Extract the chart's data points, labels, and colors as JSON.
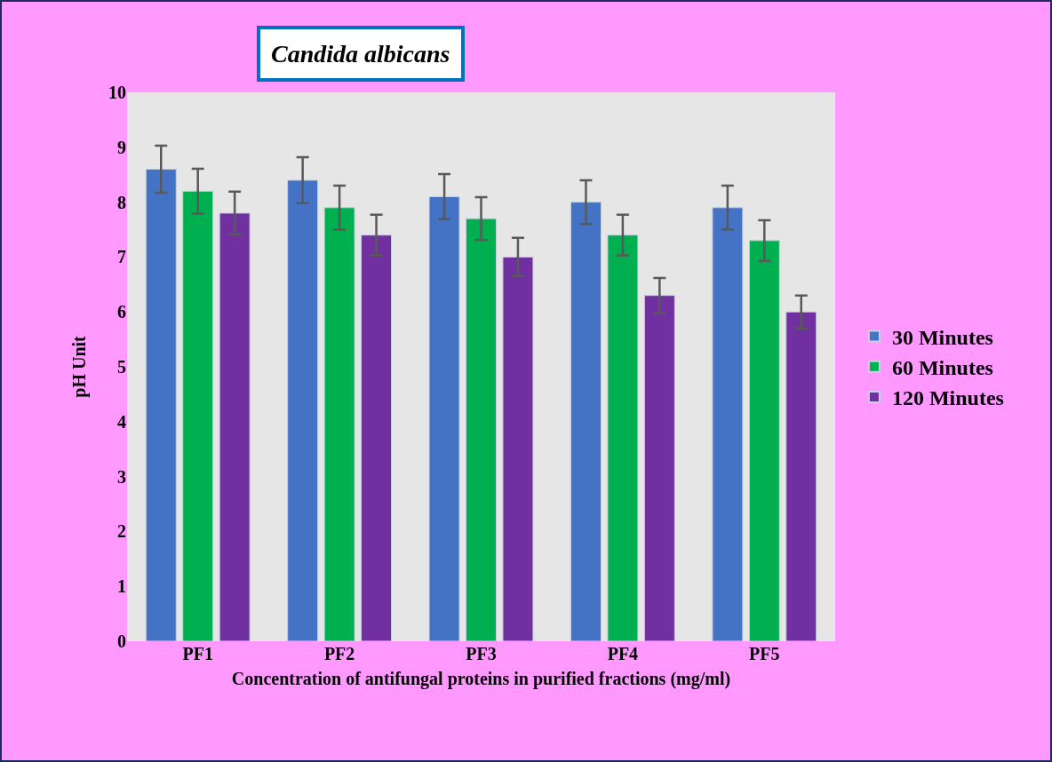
{
  "chart_data": {
    "type": "bar",
    "title": "Candida albicans",
    "xlabel": "Concentration of antifungal proteins in purified fractions (mg/ml)",
    "ylabel": "pH Unit",
    "categories": [
      "PF1",
      "PF2",
      "PF3",
      "PF4",
      "PF5"
    ],
    "series": [
      {
        "name": "30 Minutes",
        "color": "#4472c4",
        "values": [
          8.6,
          8.4,
          8.1,
          8.0,
          7.9
        ],
        "errors": [
          0.43,
          0.42,
          0.41,
          0.4,
          0.4
        ]
      },
      {
        "name": "60 Minutes",
        "color": "#00b050",
        "values": [
          8.2,
          7.9,
          7.7,
          7.4,
          7.3
        ],
        "errors": [
          0.41,
          0.4,
          0.39,
          0.37,
          0.37
        ]
      },
      {
        "name": "120 Minutes",
        "color": "#7030a0",
        "values": [
          7.8,
          7.4,
          7.0,
          6.3,
          6.0
        ],
        "errors": [
          0.39,
          0.37,
          0.35,
          0.32,
          0.3
        ]
      }
    ],
    "ylim": [
      0,
      10
    ],
    "yticks": [
      0,
      1,
      2,
      3,
      4,
      5,
      6,
      7,
      8,
      9,
      10
    ],
    "grid": false,
    "legend": "right"
  }
}
